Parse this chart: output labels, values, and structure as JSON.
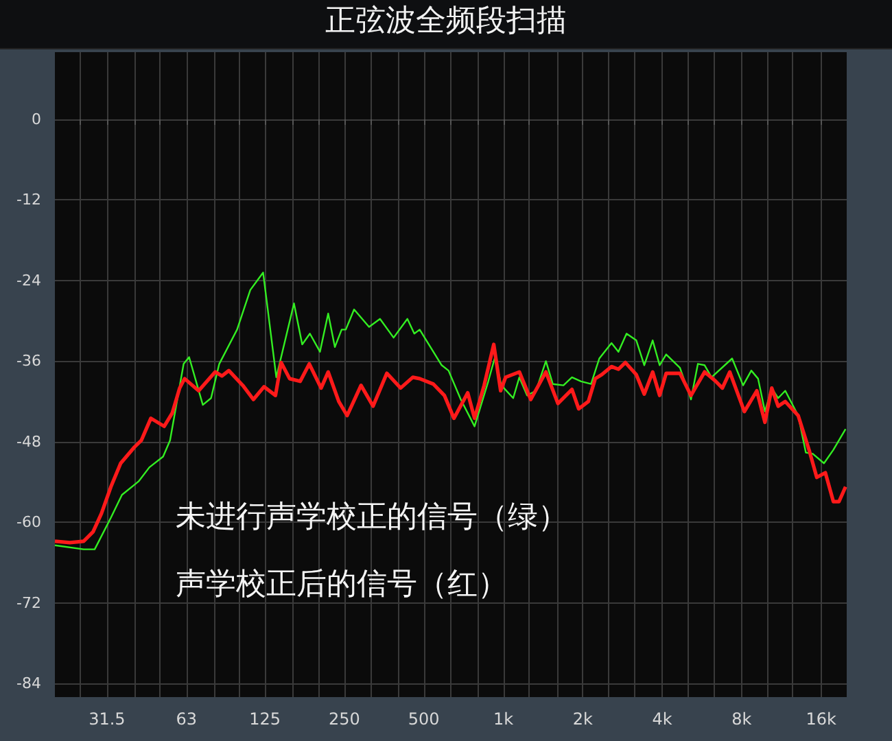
{
  "chart_data": {
    "type": "line",
    "title": "正弦波全频段扫描",
    "log": "x",
    "grid": true,
    "xlim": [
      20,
      20000
    ],
    "ylim": [
      -86,
      10
    ],
    "xticks": [
      {
        "value": 25,
        "label": null
      },
      {
        "value": 31.5,
        "label": "31.5"
      },
      {
        "value": 40,
        "label": null
      },
      {
        "value": 50,
        "label": null
      },
      {
        "value": 63,
        "label": "63"
      },
      {
        "value": 80,
        "label": null
      },
      {
        "value": 100,
        "label": null
      },
      {
        "value": 125,
        "label": "125"
      },
      {
        "value": 160,
        "label": null
      },
      {
        "value": 200,
        "label": null
      },
      {
        "value": 250,
        "label": "250"
      },
      {
        "value": 315,
        "label": null
      },
      {
        "value": 400,
        "label": null
      },
      {
        "value": 500,
        "label": "500"
      },
      {
        "value": 630,
        "label": null
      },
      {
        "value": 800,
        "label": null
      },
      {
        "value": 1000,
        "label": "1k"
      },
      {
        "value": 1250,
        "label": null
      },
      {
        "value": 1600,
        "label": null
      },
      {
        "value": 2000,
        "label": "2k"
      },
      {
        "value": 2500,
        "label": null
      },
      {
        "value": 3150,
        "label": null
      },
      {
        "value": 4000,
        "label": "4k"
      },
      {
        "value": 5000,
        "label": null
      },
      {
        "value": 6300,
        "label": null
      },
      {
        "value": 8000,
        "label": "8k"
      },
      {
        "value": 10000,
        "label": null
      },
      {
        "value": 12500,
        "label": null
      },
      {
        "value": 16000,
        "label": "16k"
      }
    ],
    "yticks": [
      0,
      -12,
      -24,
      -36,
      -48,
      -60,
      -72,
      -84
    ],
    "annotations": [
      "未进行声学校正的信号（绿）",
      "声学校正后的信号（红）"
    ],
    "series": [
      {
        "color": "#33ee22",
        "x": [
          20,
          25.7,
          28.3,
          32.6,
          35.9,
          41.5,
          45.6,
          51.4,
          54.6,
          61.5,
          64.5,
          72.7,
          78.1,
          83.9,
          98,
          110,
          123,
          138,
          161,
          173,
          185,
          202,
          217,
          230,
          244,
          253,
          272,
          310,
          341,
          384,
          433,
          460,
          482,
          584,
          620,
          690,
          778,
          877,
          930,
          983,
          1090,
          1150,
          1230,
          1330,
          1450,
          1540,
          1690,
          1820,
          1970,
          2150,
          2310,
          2570,
          2730,
          2930,
          3190,
          3420,
          3680,
          3910,
          4140,
          4670,
          5140,
          5460,
          5790,
          6150,
          6760,
          7360,
          8100,
          8700,
          9230,
          9800,
          10400,
          11000,
          11700,
          13100,
          14000,
          14900,
          16400,
          17800,
          19800
        ],
        "values": [
          -63.4,
          -64,
          -64,
          -59.3,
          -55.9,
          -53.9,
          -51.8,
          -50.2,
          -47.8,
          -36.4,
          -35.4,
          -42.5,
          -41.5,
          -36.4,
          -31.3,
          -25.4,
          -22.8,
          -38.4,
          -27.4,
          -33.5,
          -31.9,
          -34.6,
          -28.9,
          -33.9,
          -31.3,
          -31.3,
          -28.3,
          -30.9,
          -29.7,
          -32.5,
          -29.7,
          -31.9,
          -31.3,
          -36.6,
          -37.4,
          -41.7,
          -45.7,
          -39,
          -35.4,
          -39.6,
          -41.5,
          -38.4,
          -41.1,
          -40.4,
          -36,
          -39.4,
          -39.6,
          -38.4,
          -39,
          -39.4,
          -35.6,
          -33.3,
          -34.6,
          -31.9,
          -32.9,
          -36.6,
          -32.9,
          -36.6,
          -35,
          -37,
          -41.7,
          -36.4,
          -36.6,
          -38.4,
          null,
          -35.6,
          -39.6,
          -37.4,
          -38.6,
          -43.5,
          -40,
          -41.5,
          -40.4,
          -44.1,
          -49.6,
          -49.8,
          -51.2,
          -49.2,
          -46.1
        ]
      },
      {
        "color": "#ff1a1a",
        "x": [
          20,
          22.8,
          25.7,
          27.9,
          30,
          32.6,
          35.5,
          40,
          42.5,
          46.2,
          51.9,
          55.7,
          59.4,
          62,
          70.1,
          81,
          85.9,
          91.2,
          103,
          113,
          124,
          137,
          144,
          155,
          170,
          184,
          204,
          217,
          238,
          256,
          289,
          321,
          362,
          408,
          454,
          482,
          543,
          598,
          650,
          733,
          778,
          846,
          920,
          977,
          1020,
          1150,
          1270,
          1450,
          1610,
          1820,
          1930,
          2100,
          2230,
          2360,
          2570,
          2730,
          2900,
          3190,
          3420,
          3680,
          3910,
          4140,
          4670,
          5140,
          5790,
          6380,
          6760,
          7210,
          8190,
          9130,
          9800,
          10400,
          11000,
          11700,
          13100,
          14400,
          15400,
          16600,
          17800,
          18700,
          19800
        ],
        "values": [
          -62.8,
          -63,
          -62.8,
          -61.4,
          -58.7,
          -54.7,
          -51.2,
          -48.8,
          -47.8,
          -44.5,
          -45.7,
          -43.7,
          -40,
          -38.6,
          -40.4,
          -37.6,
          -38.2,
          -37.4,
          -39.6,
          -41.7,
          -39.8,
          -41.1,
          -36.2,
          -38.6,
          -39,
          -36.4,
          -40,
          -37.6,
          -42,
          -44.1,
          -39.6,
          -42.7,
          -37.8,
          -40,
          -38.4,
          -38.6,
          -39.4,
          -41.1,
          -44.5,
          -40.7,
          -44.5,
          -39.6,
          -33.5,
          -40.4,
          -38.4,
          -37.6,
          -41.7,
          -37.6,
          -42.3,
          -40.2,
          -43.1,
          -42,
          -38.6,
          -38,
          -36.8,
          -37.2,
          -36.2,
          -38,
          -40.9,
          -37.6,
          -41.1,
          -37.8,
          -37.8,
          -41.1,
          -37.6,
          -39,
          -40,
          -37.6,
          -43.5,
          -40.4,
          -45.1,
          -40,
          -42.7,
          -42,
          -44.1,
          -49.2,
          -53.3,
          -52.6,
          -56.9,
          -56.9,
          -54.7
        ]
      }
    ]
  }
}
